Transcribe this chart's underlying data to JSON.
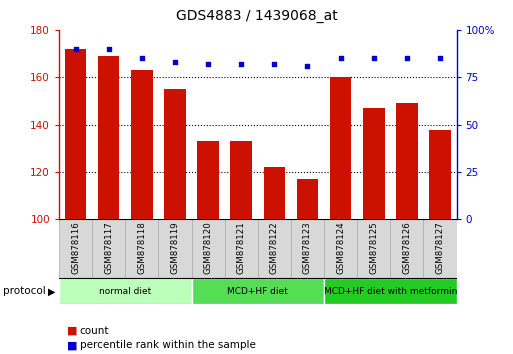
{
  "title": "GDS4883 / 1439068_at",
  "samples": [
    "GSM878116",
    "GSM878117",
    "GSM878118",
    "GSM878119",
    "GSM878120",
    "GSM878121",
    "GSM878122",
    "GSM878123",
    "GSM878124",
    "GSM878125",
    "GSM878126",
    "GSM878127"
  ],
  "counts": [
    172,
    169,
    163,
    155,
    133,
    133,
    122,
    117,
    160,
    147,
    149,
    138
  ],
  "percentile_ranks": [
    90,
    90,
    85,
    83,
    82,
    82,
    82,
    81,
    85,
    85,
    85,
    85
  ],
  "bar_color": "#cc1100",
  "dot_color": "#0000cc",
  "ylim_left": [
    100,
    180
  ],
  "ylim_right": [
    0,
    100
  ],
  "yticks_left": [
    100,
    120,
    140,
    160,
    180
  ],
  "yticks_right": [
    0,
    25,
    50,
    75,
    100
  ],
  "ytick_labels_right": [
    "0",
    "25",
    "50",
    "75",
    "100%"
  ],
  "grid_lines": [
    120,
    140,
    160
  ],
  "groups": [
    {
      "label": "normal diet",
      "start": 0,
      "end": 3,
      "color": "#bbffbb"
    },
    {
      "label": "MCD+HF diet",
      "start": 4,
      "end": 7,
      "color": "#55dd55"
    },
    {
      "label": "MCD+HF diet with metformin",
      "start": 8,
      "end": 11,
      "color": "#22cc22"
    }
  ],
  "protocol_label": "protocol",
  "legend_count_label": "count",
  "legend_percentile_label": "percentile rank within the sample",
  "sample_box_color": "#d8d8d8",
  "sample_box_edge_color": "#aaaaaa"
}
